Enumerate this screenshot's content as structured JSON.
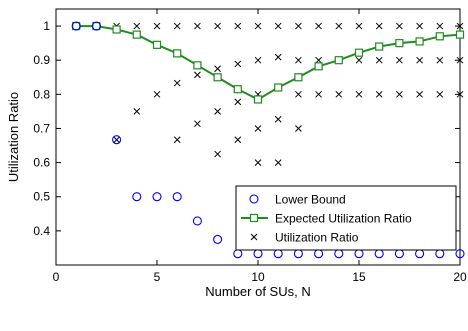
{
  "chart_data": {
    "type": "line",
    "xlabel": "Number of SUs, N",
    "ylabel": "Utilization Ratio",
    "xlim": [
      0,
      20
    ],
    "ylim": [
      0.3,
      1.05
    ],
    "xticks": [
      0,
      5,
      10,
      15,
      20
    ],
    "yticks": [
      0.4,
      0.5,
      0.6,
      0.7,
      0.8,
      0.9,
      1
    ],
    "grid": false,
    "legend_position": "inside-lower-right",
    "series": [
      {
        "name": "Lower Bound",
        "marker": "circle",
        "line": false,
        "color": "#0000ff",
        "x": [
          1,
          2,
          3,
          4,
          5,
          6,
          7,
          8,
          9,
          10,
          11,
          12,
          13,
          14,
          15,
          16,
          17,
          18,
          19,
          20
        ],
        "y": [
          1,
          1,
          0.667,
          0.5,
          0.5,
          0.5,
          0.429,
          0.375,
          0.333,
          0.333,
          0.333,
          0.333,
          0.333,
          0.333,
          0.333,
          0.333,
          0.333,
          0.333,
          0.333,
          0.333
        ]
      },
      {
        "name": "Expected Utilization Ratio",
        "marker": "square",
        "line": true,
        "color": "#1e8c1e",
        "x": [
          1,
          2,
          3,
          4,
          5,
          6,
          7,
          8,
          9,
          10,
          11,
          12,
          13,
          14,
          15,
          16,
          17,
          18,
          19,
          20
        ],
        "y": [
          1,
          1,
          0.99,
          0.975,
          0.945,
          0.92,
          0.885,
          0.85,
          0.815,
          0.785,
          0.82,
          0.85,
          0.882,
          0.9,
          0.922,
          0.94,
          0.95,
          0.955,
          0.97,
          0.975
        ]
      },
      {
        "name": "Utilization Ratio",
        "marker": "x",
        "line": false,
        "color": "#000000",
        "points": [
          [
            1,
            1
          ],
          [
            2,
            1
          ],
          [
            3,
            1
          ],
          [
            3,
            0.667
          ],
          [
            4,
            1
          ],
          [
            4,
            0.75
          ],
          [
            5,
            1
          ],
          [
            5,
            0.8
          ],
          [
            6,
            1
          ],
          [
            6,
            0.833
          ],
          [
            6,
            0.667
          ],
          [
            7,
            1
          ],
          [
            7,
            0.857
          ],
          [
            7,
            0.714
          ],
          [
            8,
            1
          ],
          [
            8,
            0.875
          ],
          [
            8,
            0.75
          ],
          [
            8,
            0.625
          ],
          [
            9,
            1
          ],
          [
            9,
            0.889
          ],
          [
            9,
            0.778
          ],
          [
            9,
            0.667
          ],
          [
            10,
            1
          ],
          [
            10,
            0.9
          ],
          [
            10,
            0.8
          ],
          [
            10,
            0.7
          ],
          [
            10,
            0.6
          ],
          [
            11,
            1
          ],
          [
            11,
            0.909
          ],
          [
            11,
            0.818
          ],
          [
            11,
            0.727
          ],
          [
            11,
            0.6
          ],
          [
            12,
            1
          ],
          [
            12,
            0.9
          ],
          [
            12,
            0.8
          ],
          [
            12,
            0.7
          ],
          [
            13,
            1
          ],
          [
            13,
            0.9
          ],
          [
            13,
            0.8
          ],
          [
            14,
            1
          ],
          [
            14,
            0.9
          ],
          [
            14,
            0.8
          ],
          [
            15,
            1
          ],
          [
            15,
            0.9
          ],
          [
            15,
            0.8
          ],
          [
            16,
            1
          ],
          [
            16,
            0.9
          ],
          [
            16,
            0.8
          ],
          [
            17,
            1
          ],
          [
            17,
            0.9
          ],
          [
            17,
            0.8
          ],
          [
            18,
            1
          ],
          [
            18,
            0.9
          ],
          [
            18,
            0.8
          ],
          [
            19,
            1
          ],
          [
            19,
            0.9
          ],
          [
            19,
            0.8
          ],
          [
            20,
            1
          ],
          [
            20,
            0.9
          ],
          [
            20,
            0.8
          ]
        ]
      }
    ]
  }
}
